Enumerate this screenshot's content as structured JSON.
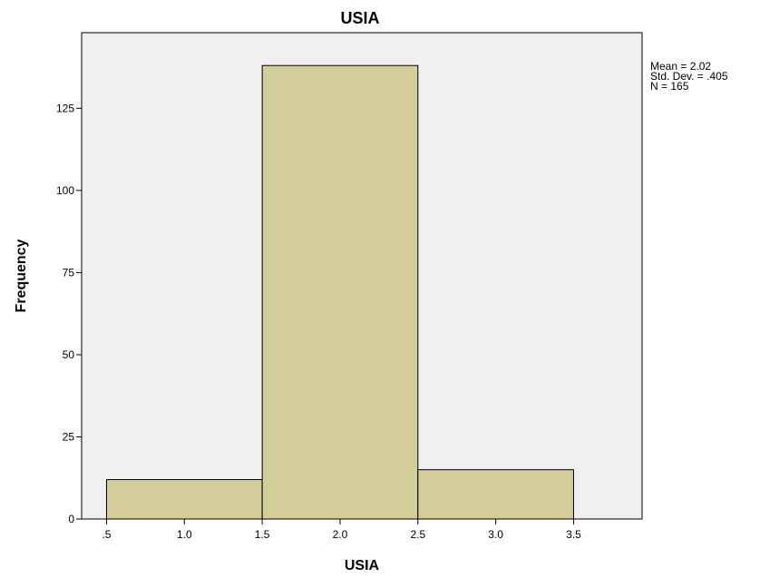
{
  "chart_data": {
    "type": "bar",
    "title": "USIA",
    "xlabel": "USIA",
    "ylabel": "Frequency",
    "bins": [
      {
        "x0": 0.5,
        "x1": 1.5,
        "value": 12
      },
      {
        "x0": 1.5,
        "x1": 2.5,
        "value": 138
      },
      {
        "x0": 2.5,
        "x1": 3.5,
        "value": 15
      }
    ],
    "x_ticks": [
      {
        "value": 0.5,
        "label": ".5"
      },
      {
        "value": 1.0,
        "label": "1.0"
      },
      {
        "value": 1.5,
        "label": "1.5"
      },
      {
        "value": 2.0,
        "label": "2.0"
      },
      {
        "value": 2.5,
        "label": "2.5"
      },
      {
        "value": 3.0,
        "label": "3.0"
      },
      {
        "value": 3.5,
        "label": "3.5"
      }
    ],
    "y_ticks": [
      {
        "value": 0,
        "label": "0"
      },
      {
        "value": 25,
        "label": "25"
      },
      {
        "value": 50,
        "label": "50"
      },
      {
        "value": 75,
        "label": "75"
      },
      {
        "value": 100,
        "label": "100"
      },
      {
        "value": 125,
        "label": "125"
      }
    ],
    "xlim": [
      0.34,
      3.94
    ],
    "ylim": [
      0,
      148
    ],
    "grid": false,
    "legend": "none",
    "stats": [
      "Mean = 2.02",
      "Std. Dev. = .405",
      "N = 165"
    ],
    "colors": {
      "bar_fill": "#d3ce99",
      "bar_stroke": "#000000",
      "plot_background": "#f0f0f0",
      "frame": "#000000"
    }
  }
}
